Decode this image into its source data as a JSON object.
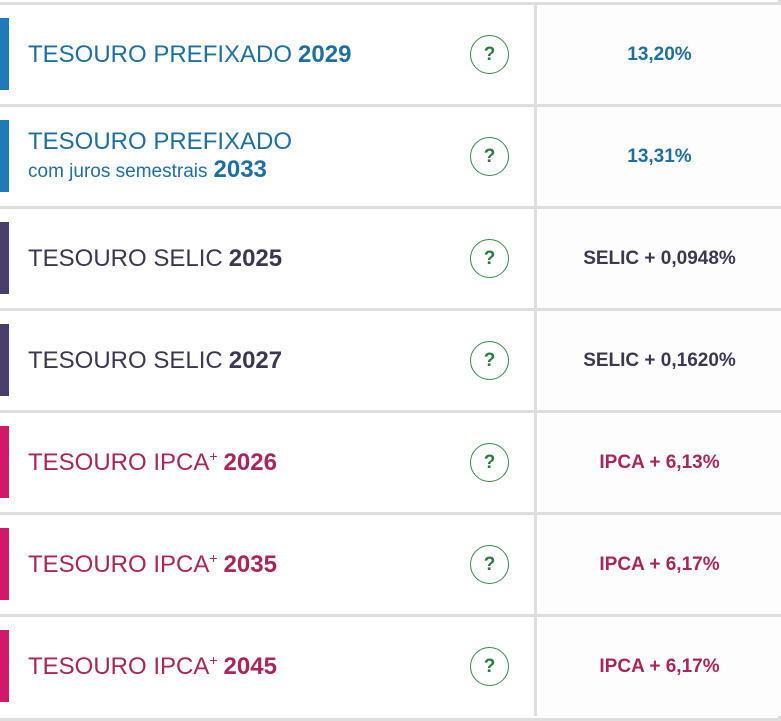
{
  "rows": [
    {
      "name": "TESOURO PREFIXADO",
      "year": "2029",
      "help": "?",
      "rate": "13,20%",
      "color": "#1f6f9f",
      "bar_color": "#1f7ab8"
    },
    {
      "name": "TESOURO PREFIXADO",
      "subtitle": "com juros semestrais",
      "year": "2033",
      "help": "?",
      "rate": "13,31%",
      "color": "#1f6f9f",
      "bar_color": "#1f7ab8"
    },
    {
      "name": "TESOURO SELIC",
      "year": "2025",
      "help": "?",
      "rate": "SELIC + 0,0948%",
      "color": "#3b3852",
      "bar_color": "#4a3f6b"
    },
    {
      "name": "TESOURO SELIC",
      "year": "2027",
      "help": "?",
      "rate": "SELIC + 0,1620%",
      "color": "#3b3852",
      "bar_color": "#4a3f6b"
    },
    {
      "name": "TESOURO IPCA",
      "sup": "+",
      "year": "2026",
      "help": "?",
      "rate": "IPCA + 6,13%",
      "color": "#a8265c",
      "bar_color": "#d1196a"
    },
    {
      "name": "TESOURO IPCA",
      "sup": "+",
      "year": "2035",
      "help": "?",
      "rate": "IPCA + 6,17%",
      "color": "#a8265c",
      "bar_color": "#d1196a"
    },
    {
      "name": "TESOURO IPCA",
      "sup": "+",
      "year": "2045",
      "help": "?",
      "rate": "IPCA + 6,17%",
      "color": "#a8265c",
      "bar_color": "#d1196a"
    }
  ]
}
